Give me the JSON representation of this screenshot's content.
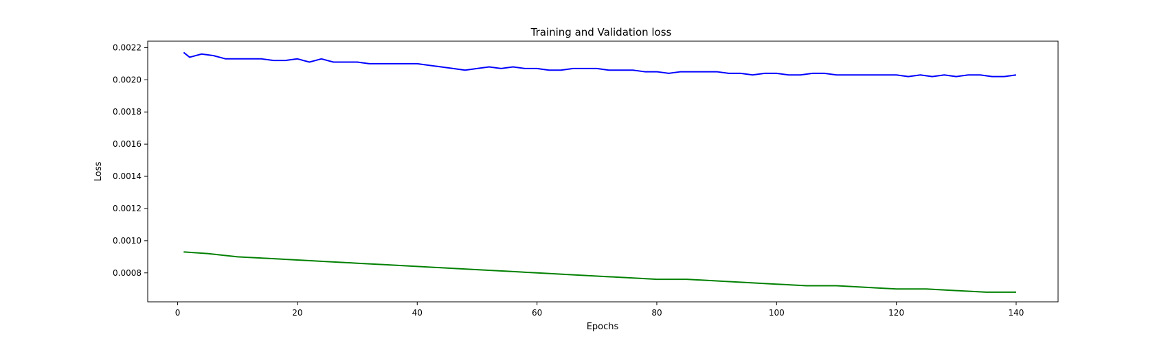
{
  "chart_data": {
    "type": "line",
    "title": "Training and Validation loss",
    "xlabel": "Epochs",
    "ylabel": "Loss",
    "xlim": [
      -5,
      147
    ],
    "ylim": [
      0.00062,
      0.00224
    ],
    "xticks": [
      0,
      20,
      40,
      60,
      80,
      100,
      120,
      140
    ],
    "yticks": [
      0.0008,
      0.001,
      0.0012,
      0.0014,
      0.0016,
      0.0018,
      0.002,
      0.0022
    ],
    "ytick_labels": [
      "0.0008",
      "0.0010",
      "0.0012",
      "0.0014",
      "0.0016",
      "0.0018",
      "0.0020",
      "0.0022"
    ],
    "grid": false,
    "legend": "none",
    "series": [
      {
        "color": "#0000ff",
        "x": [
          1,
          2,
          4,
          6,
          8,
          10,
          12,
          14,
          16,
          18,
          20,
          22,
          24,
          26,
          28,
          30,
          32,
          34,
          36,
          38,
          40,
          44,
          48,
          50,
          52,
          54,
          56,
          58,
          60,
          62,
          64,
          66,
          68,
          70,
          72,
          74,
          76,
          78,
          80,
          82,
          84,
          86,
          88,
          90,
          92,
          94,
          96,
          98,
          100,
          102,
          104,
          106,
          108,
          110,
          112,
          114,
          116,
          118,
          120,
          122,
          124,
          126,
          128,
          130,
          132,
          134,
          136,
          138,
          140
        ],
        "y": [
          0.00217,
          0.00214,
          0.00216,
          0.00215,
          0.00213,
          0.00213,
          0.00213,
          0.00213,
          0.00212,
          0.00212,
          0.00213,
          0.00211,
          0.00213,
          0.00211,
          0.00211,
          0.00211,
          0.0021,
          0.0021,
          0.0021,
          0.0021,
          0.0021,
          0.00208,
          0.00206,
          0.00207,
          0.00208,
          0.00207,
          0.00208,
          0.00207,
          0.00207,
          0.00206,
          0.00206,
          0.00207,
          0.00207,
          0.00207,
          0.00206,
          0.00206,
          0.00206,
          0.00205,
          0.00205,
          0.00204,
          0.00205,
          0.00205,
          0.00205,
          0.00205,
          0.00204,
          0.00204,
          0.00203,
          0.00204,
          0.00204,
          0.00203,
          0.00203,
          0.00204,
          0.00204,
          0.00203,
          0.00203,
          0.00203,
          0.00203,
          0.00203,
          0.00203,
          0.00202,
          0.00203,
          0.00202,
          0.00203,
          0.00202,
          0.00203,
          0.00203,
          0.00202,
          0.00202,
          0.00203
        ]
      },
      {
        "color": "#008000",
        "x": [
          1,
          5,
          10,
          15,
          20,
          25,
          30,
          35,
          40,
          45,
          50,
          55,
          60,
          65,
          70,
          75,
          80,
          85,
          90,
          95,
          100,
          105,
          110,
          115,
          120,
          125,
          130,
          135,
          138,
          140
        ],
        "y": [
          0.00093,
          0.00092,
          0.0009,
          0.00089,
          0.00088,
          0.00087,
          0.00086,
          0.00085,
          0.00084,
          0.00083,
          0.00082,
          0.00081,
          0.0008,
          0.00079,
          0.00078,
          0.00077,
          0.00076,
          0.00076,
          0.00075,
          0.00074,
          0.00073,
          0.00072,
          0.00072,
          0.00071,
          0.0007,
          0.0007,
          0.00069,
          0.00068,
          0.00068,
          0.00068
        ]
      }
    ]
  }
}
